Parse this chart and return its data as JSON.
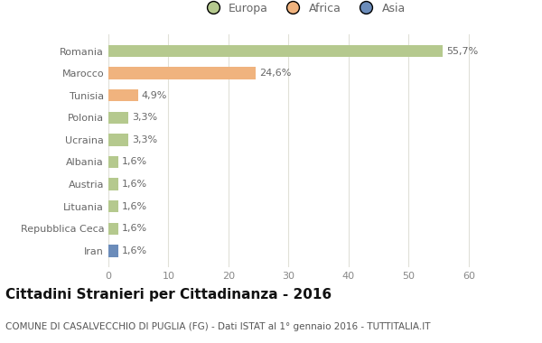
{
  "categories": [
    "Romania",
    "Marocco",
    "Tunisia",
    "Polonia",
    "Ucraina",
    "Albania",
    "Austria",
    "Lituania",
    "Repubblica Ceca",
    "Iran"
  ],
  "values": [
    55.7,
    24.6,
    4.9,
    3.3,
    3.3,
    1.6,
    1.6,
    1.6,
    1.6,
    1.6
  ],
  "labels": [
    "55,7%",
    "24,6%",
    "4,9%",
    "3,3%",
    "3,3%",
    "1,6%",
    "1,6%",
    "1,6%",
    "1,6%",
    "1,6%"
  ],
  "colors": [
    "#b5c98e",
    "#f0b37e",
    "#f0b37e",
    "#b5c98e",
    "#b5c98e",
    "#b5c98e",
    "#b5c98e",
    "#b5c98e",
    "#b5c98e",
    "#6b8cba"
  ],
  "legend_labels": [
    "Europa",
    "Africa",
    "Asia"
  ],
  "legend_colors": [
    "#b5c98e",
    "#f0b37e",
    "#6b8cba"
  ],
  "title": "Cittadini Stranieri per Cittadinanza - 2016",
  "subtitle": "COMUNE DI CASALVECCHIO DI PUGLIA (FG) - Dati ISTAT al 1° gennaio 2016 - TUTTITALIA.IT",
  "xlim": [
    0,
    65
  ],
  "xticks": [
    0,
    10,
    20,
    30,
    40,
    50,
    60
  ],
  "background_color": "#ffffff",
  "grid_color": "#e0e0d8",
  "bar_height": 0.55,
  "label_fontsize": 8,
  "ytick_fontsize": 8,
  "xtick_fontsize": 8,
  "legend_fontsize": 9,
  "title_fontsize": 11,
  "subtitle_fontsize": 7.5
}
